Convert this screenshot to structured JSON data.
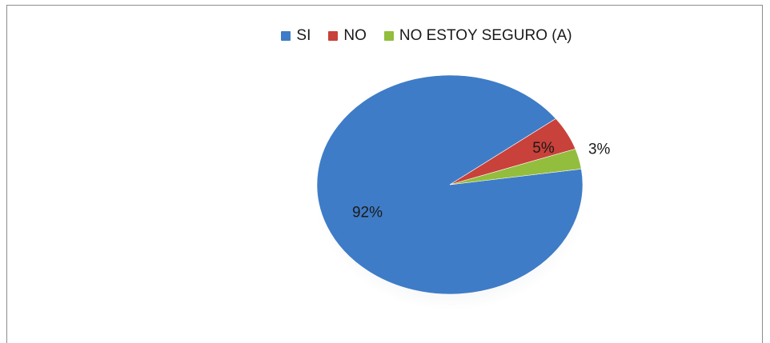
{
  "chart_data": {
    "type": "pie",
    "title": "",
    "categories": [
      "SI",
      "NO",
      "NO ESTOY SEGURO (A)"
    ],
    "values": [
      92,
      5,
      3
    ],
    "labels": [
      "92%",
      "5%",
      "3%"
    ],
    "colors": [
      "#3f7cc7",
      "#c8413a",
      "#93bd3d"
    ],
    "legend_position": "top"
  },
  "legend": {
    "items": [
      {
        "label": "SI",
        "color": "#3f7cc7"
      },
      {
        "label": "NO",
        "color": "#c8413a"
      },
      {
        "label": "NO ESTOY SEGURO (A)",
        "color": "#93bd3d"
      }
    ]
  }
}
